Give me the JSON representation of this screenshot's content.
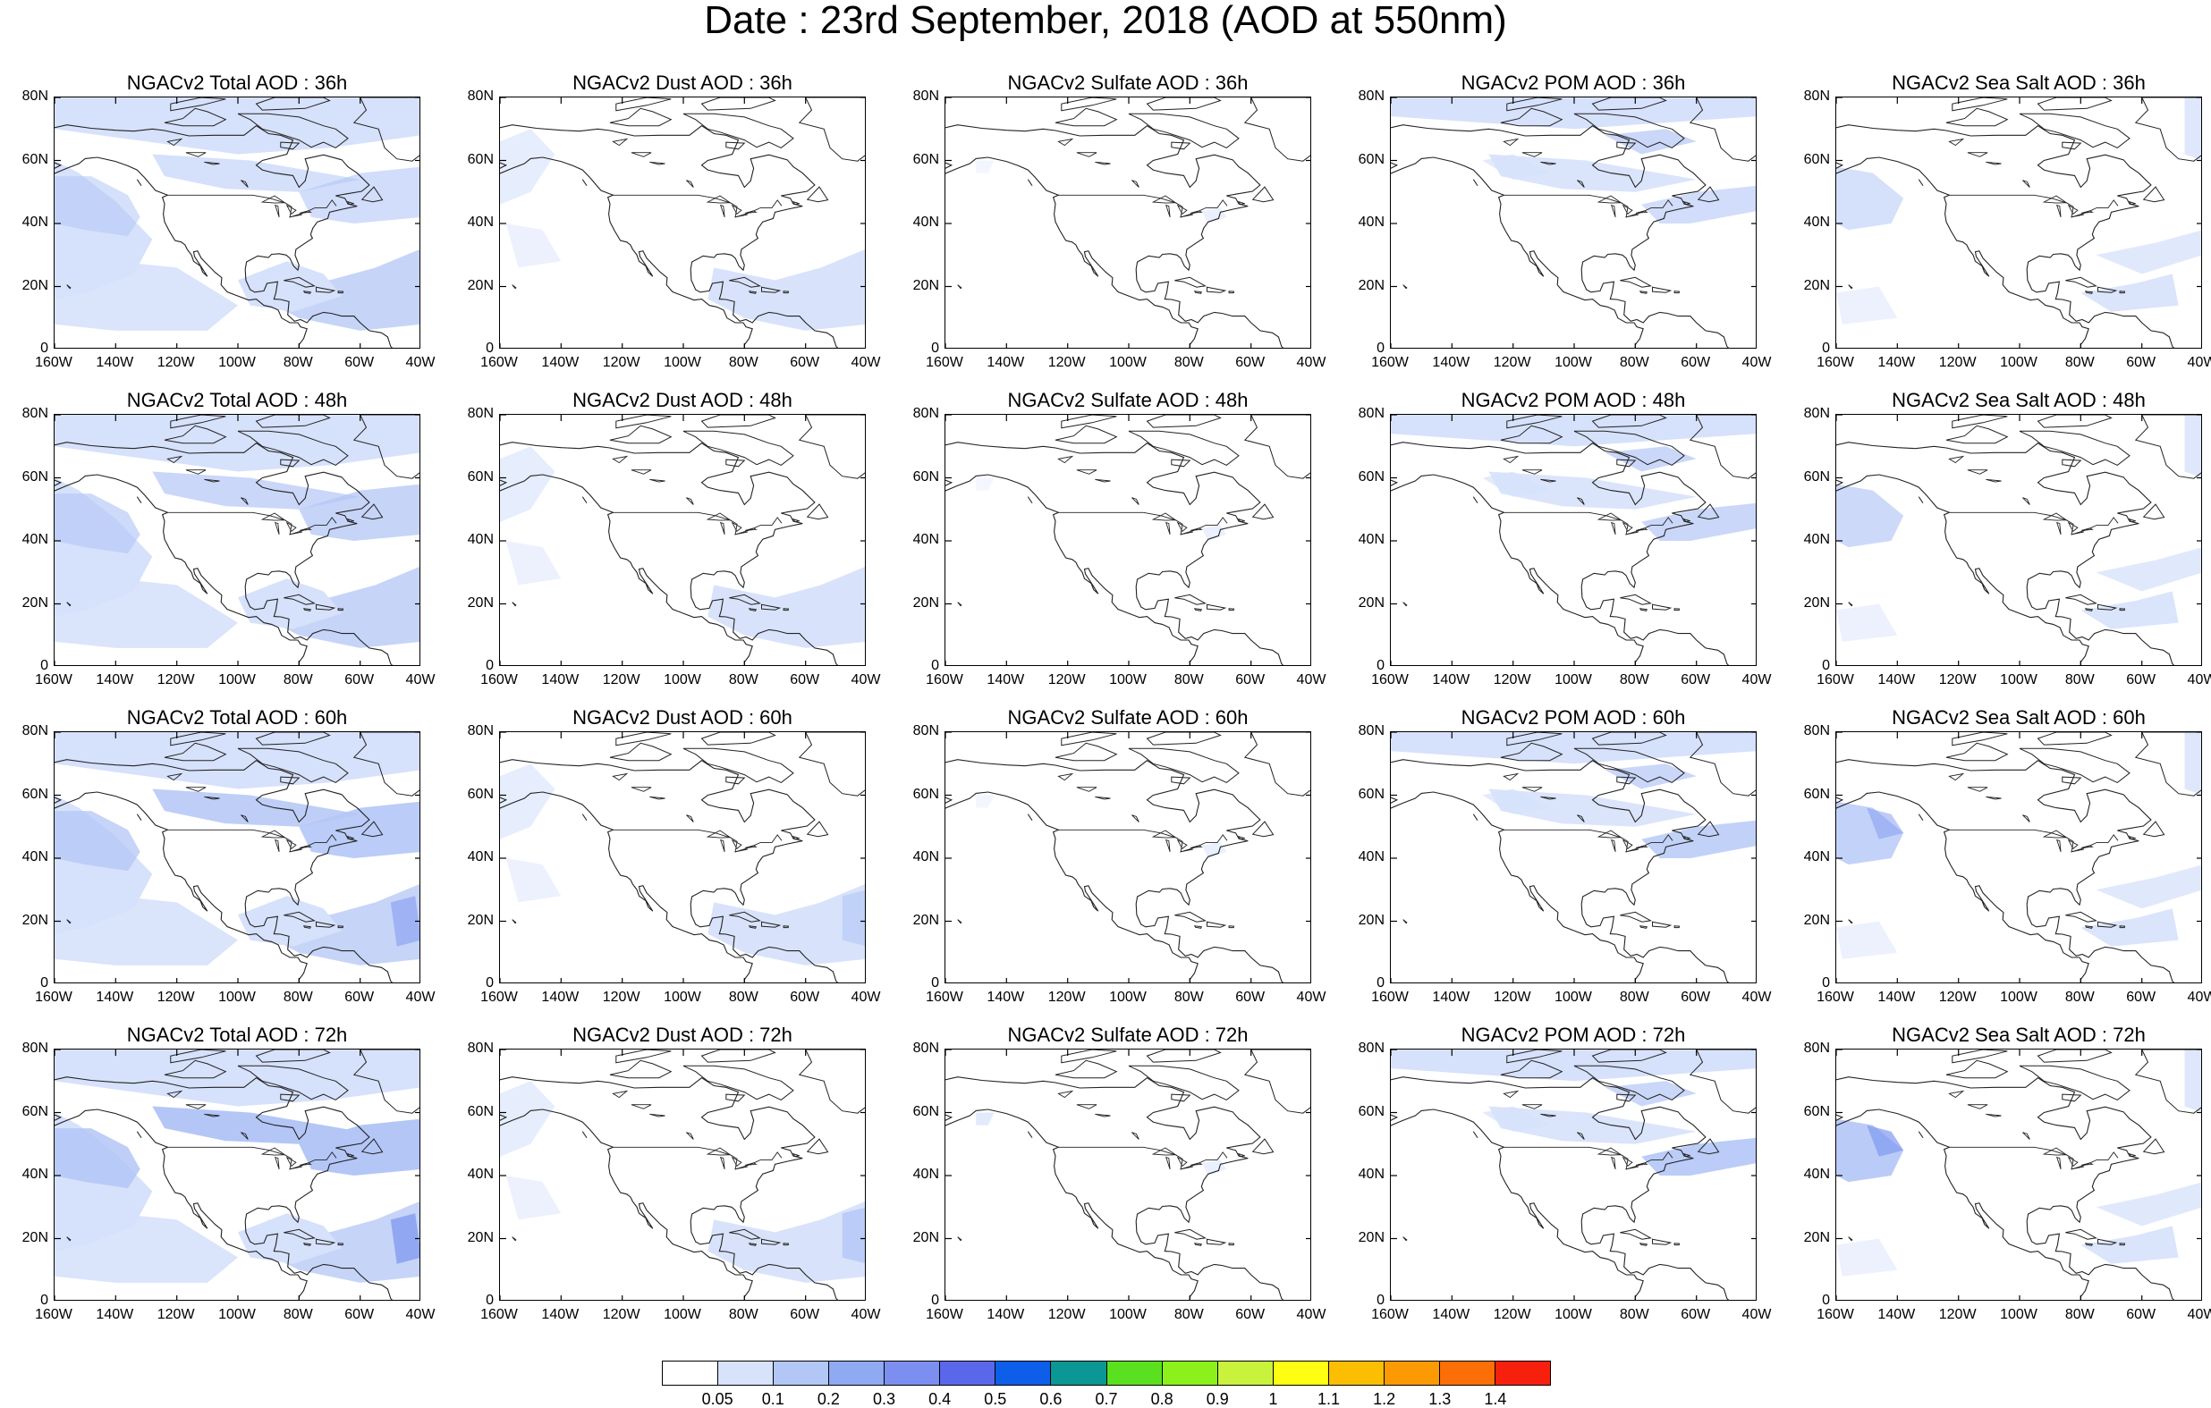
{
  "title": "Date : 23rd September, 2018 (AOD at 550nm)",
  "lat_ticks": [
    "80N",
    "60N",
    "40N",
    "20N",
    "0"
  ],
  "lon_ticks": [
    "160W",
    "140W",
    "120W",
    "100W",
    "80W",
    "60W",
    "40W"
  ],
  "rows": [
    {
      "panels": [
        {
          "title": "NGACv2 Total AOD : 36h",
          "species": "total",
          "lead_hours": 36
        },
        {
          "title": "NGACv2 Dust AOD : 36h",
          "species": "dust",
          "lead_hours": 36
        },
        {
          "title": "NGACv2 Sulfate AOD : 36h",
          "species": "sulfate",
          "lead_hours": 36
        },
        {
          "title": "NGACv2 POM AOD : 36h",
          "species": "pom",
          "lead_hours": 36
        },
        {
          "title": "NGACv2 Sea Salt AOD : 36h",
          "species": "seasalt",
          "lead_hours": 36
        }
      ]
    },
    {
      "panels": [
        {
          "title": "NGACv2 Total AOD : 48h",
          "species": "total",
          "lead_hours": 48
        },
        {
          "title": "NGACv2 Dust AOD : 48h",
          "species": "dust",
          "lead_hours": 48
        },
        {
          "title": "NGACv2 Sulfate AOD : 48h",
          "species": "sulfate",
          "lead_hours": 48
        },
        {
          "title": "NGACv2 POM AOD : 48h",
          "species": "pom",
          "lead_hours": 48
        },
        {
          "title": "NGACv2 Sea Salt AOD : 48h",
          "species": "seasalt",
          "lead_hours": 48
        }
      ]
    },
    {
      "panels": [
        {
          "title": "NGACv2 Total AOD : 60h",
          "species": "total",
          "lead_hours": 60
        },
        {
          "title": "NGACv2 Dust AOD : 60h",
          "species": "dust",
          "lead_hours": 60
        },
        {
          "title": "NGACv2 Sulfate AOD : 60h",
          "species": "sulfate",
          "lead_hours": 60
        },
        {
          "title": "NGACv2 POM AOD : 60h",
          "species": "pom",
          "lead_hours": 60
        },
        {
          "title": "NGACv2 Sea Salt AOD : 60h",
          "species": "seasalt",
          "lead_hours": 60
        }
      ]
    },
    {
      "panels": [
        {
          "title": "NGACv2 Total AOD : 72h",
          "species": "total",
          "lead_hours": 72
        },
        {
          "title": "NGACv2 Dust AOD : 72h",
          "species": "dust",
          "lead_hours": 72
        },
        {
          "title": "NGACv2 Sulfate AOD : 72h",
          "species": "sulfate",
          "lead_hours": 72
        },
        {
          "title": "NGACv2 POM AOD : 72h",
          "species": "pom",
          "lead_hours": 72
        },
        {
          "title": "NGACv2 Sea Salt  AOD : 72h",
          "species": "seasalt",
          "lead_hours": 72
        }
      ]
    }
  ],
  "colorbar": {
    "labels": [
      "0.05",
      "0.1",
      "0.2",
      "0.3",
      "0.4",
      "0.5",
      "0.6",
      "0.7",
      "0.8",
      "0.9",
      "1",
      "1.1",
      "1.2",
      "1.3",
      "1.4"
    ],
    "colors": [
      "#ffffff",
      "#d7e3fb",
      "#b3c7f7",
      "#8fa9f3",
      "#7c8ff0",
      "#5b67ea",
      "#0d5ee8",
      "#0b9793",
      "#5be020",
      "#8cf01a",
      "#c8f23c",
      "#fefe12",
      "#fcbe03",
      "#fc9a03",
      "#fb6f06",
      "#f7200d"
    ]
  },
  "colors": {
    "land_outline": "#222222",
    "plume_light": "#d6e1fb",
    "plume_mid": "#b3c6f6",
    "plume_dark": "#8098f0"
  }
}
